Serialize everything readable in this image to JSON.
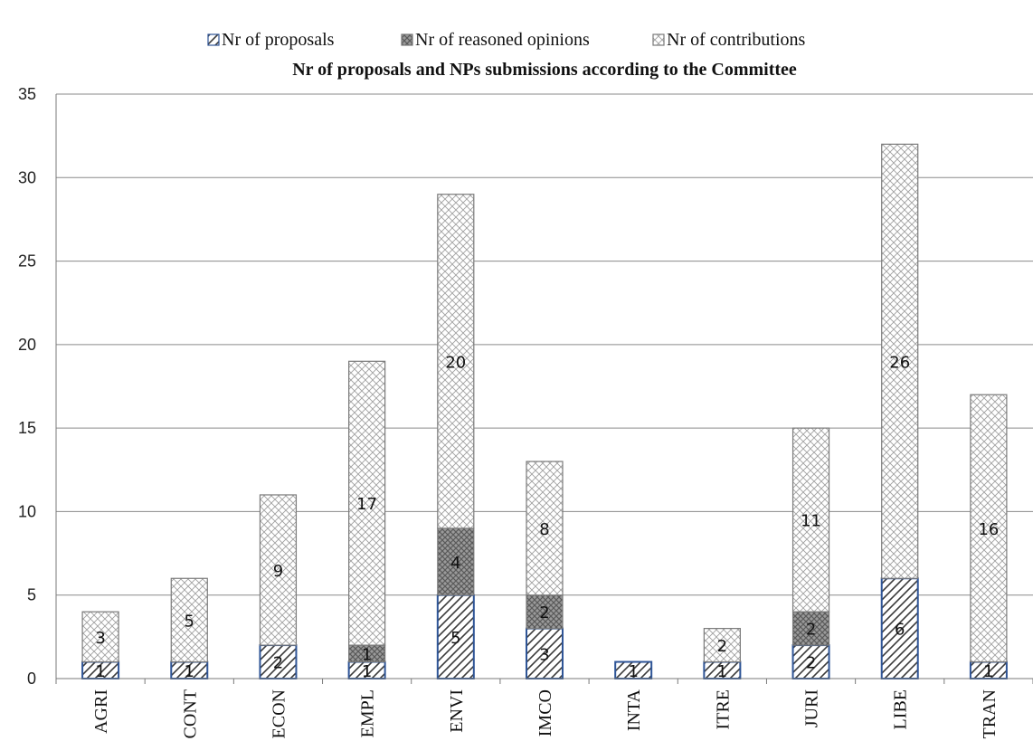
{
  "chart_data": {
    "type": "bar",
    "stacked": true,
    "title": "Nr of proposals  and NPs submissions  according to the Committee",
    "xlabel": "",
    "ylabel": "",
    "ylim": [
      0,
      35
    ],
    "yticks": [
      0,
      5,
      10,
      15,
      20,
      25,
      30,
      35
    ],
    "grid": true,
    "legend_position": "top",
    "categories": [
      "AGRI",
      "CONT",
      "ECON",
      "EMPL",
      "ENVI",
      "IMCO",
      "INTA",
      "ITRE",
      "JURI",
      "LIBE",
      "TRAN"
    ],
    "series": [
      {
        "name": "Nr of proposals",
        "values": [
          1,
          1,
          2,
          1,
          5,
          3,
          1,
          1,
          2,
          6,
          1
        ],
        "color": "#2f5597",
        "pattern": "diagonal-hatch"
      },
      {
        "name": "Nr of reasoned opinions",
        "values": [
          0,
          0,
          0,
          1,
          4,
          2,
          0,
          0,
          2,
          0,
          0
        ],
        "color": "#8c8c8c",
        "pattern": "dense-crosshatch"
      },
      {
        "name": "Nr of contributions",
        "values": [
          3,
          5,
          9,
          17,
          20,
          8,
          0,
          2,
          11,
          26,
          16
        ],
        "color": "#c8c8c8",
        "pattern": "light-crosshatch"
      }
    ],
    "data_labels": {
      "Nr of proposals": [
        "1",
        "1",
        "2",
        "1",
        "5",
        "3",
        "1",
        "1",
        "2",
        "6",
        "1"
      ],
      "Nr of reasoned opinions": [
        "",
        "",
        "",
        "1",
        "4",
        "2",
        "",
        "",
        "2",
        "",
        ""
      ],
      "Nr of contributions": [
        "3",
        "5",
        "9",
        "17",
        "20",
        "8",
        "",
        "2",
        "11",
        "26",
        "16"
      ]
    }
  }
}
